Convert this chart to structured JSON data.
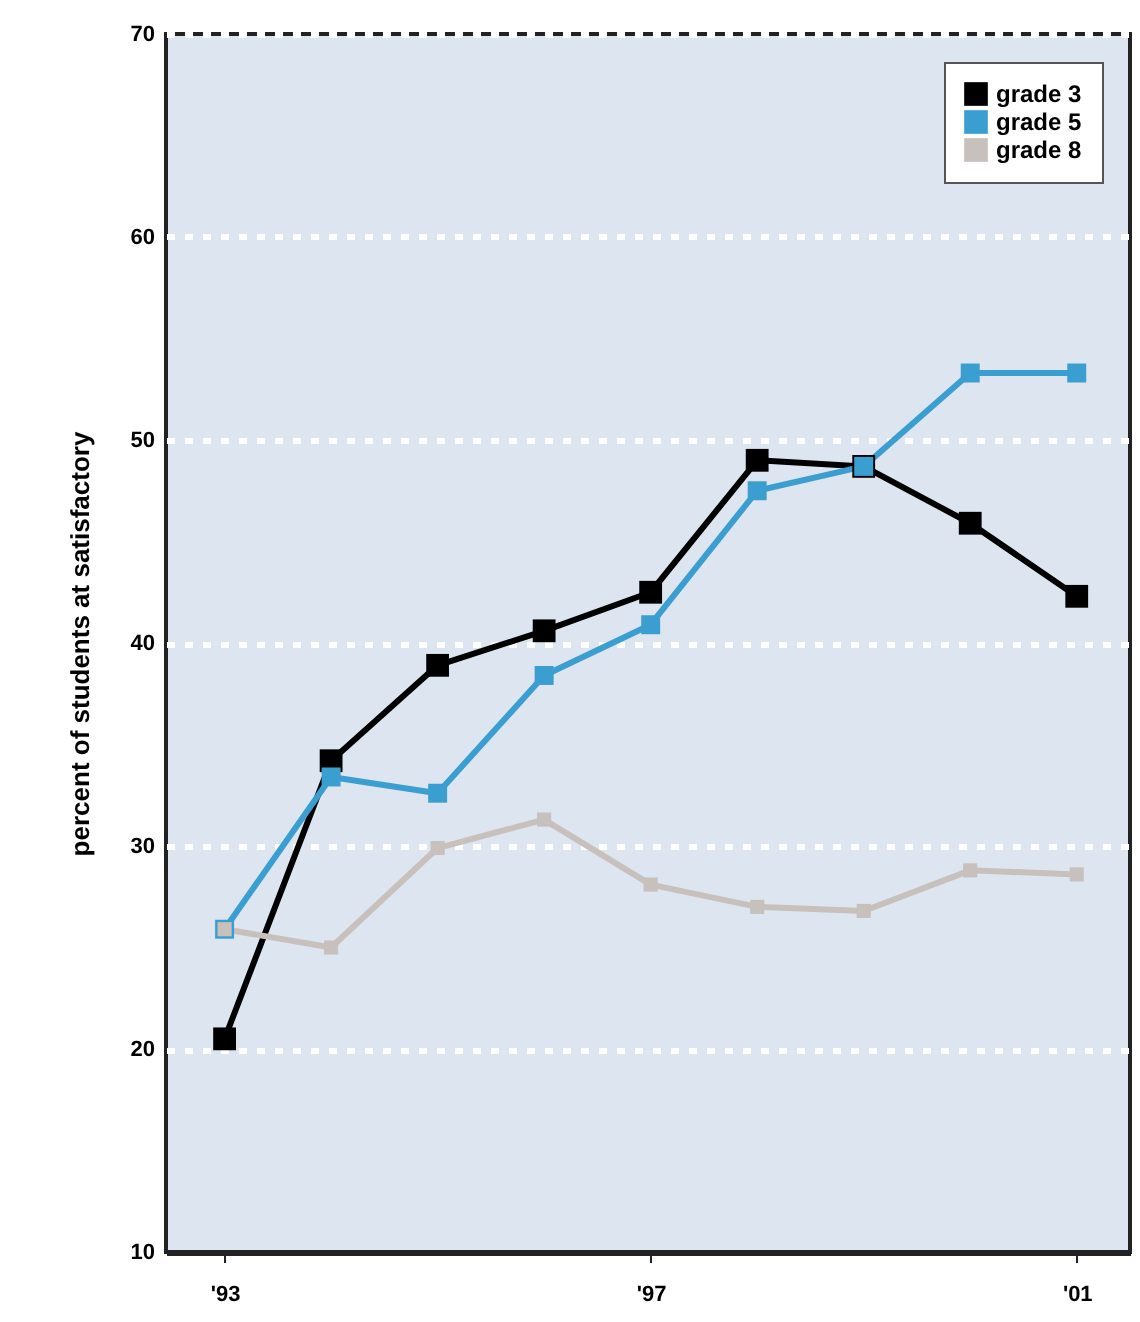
{
  "chart_data": {
    "type": "line",
    "ylabel": "percent of students at satisfactory",
    "x": [
      1993,
      1994,
      1995,
      1996,
      1997,
      1998,
      1999,
      2000,
      2001
    ],
    "series": [
      {
        "name": "grade 3",
        "color": "#000000",
        "values": [
          20.5,
          34.2,
          38.9,
          40.6,
          42.5,
          49,
          48.7,
          45.9,
          42.3
        ]
      },
      {
        "name": "grade 5",
        "color": "#3a9fd0",
        "values": [
          25.9,
          33.4,
          32.6,
          38.4,
          40.9,
          47.5,
          48.7,
          53.3,
          53.3
        ]
      },
      {
        "name": "grade 8",
        "color": "#c8c0bc",
        "values": [
          25.9,
          25,
          29.9,
          31.3,
          28.1,
          27,
          26.8,
          28.8,
          28.6
        ]
      }
    ],
    "xlim": [
      1992.45,
      2001.5
    ],
    "xticks": [
      {
        "value": 1993,
        "label": "'93"
      },
      {
        "value": 1997,
        "label": "'97"
      },
      {
        "value": 2001,
        "label": "'01"
      }
    ],
    "ylim": [
      10,
      70
    ],
    "yticks": [
      10,
      20,
      30,
      40,
      50,
      60,
      70
    ],
    "grid": "y",
    "legend": "top right",
    "marker": "square",
    "line_style": "solid"
  }
}
